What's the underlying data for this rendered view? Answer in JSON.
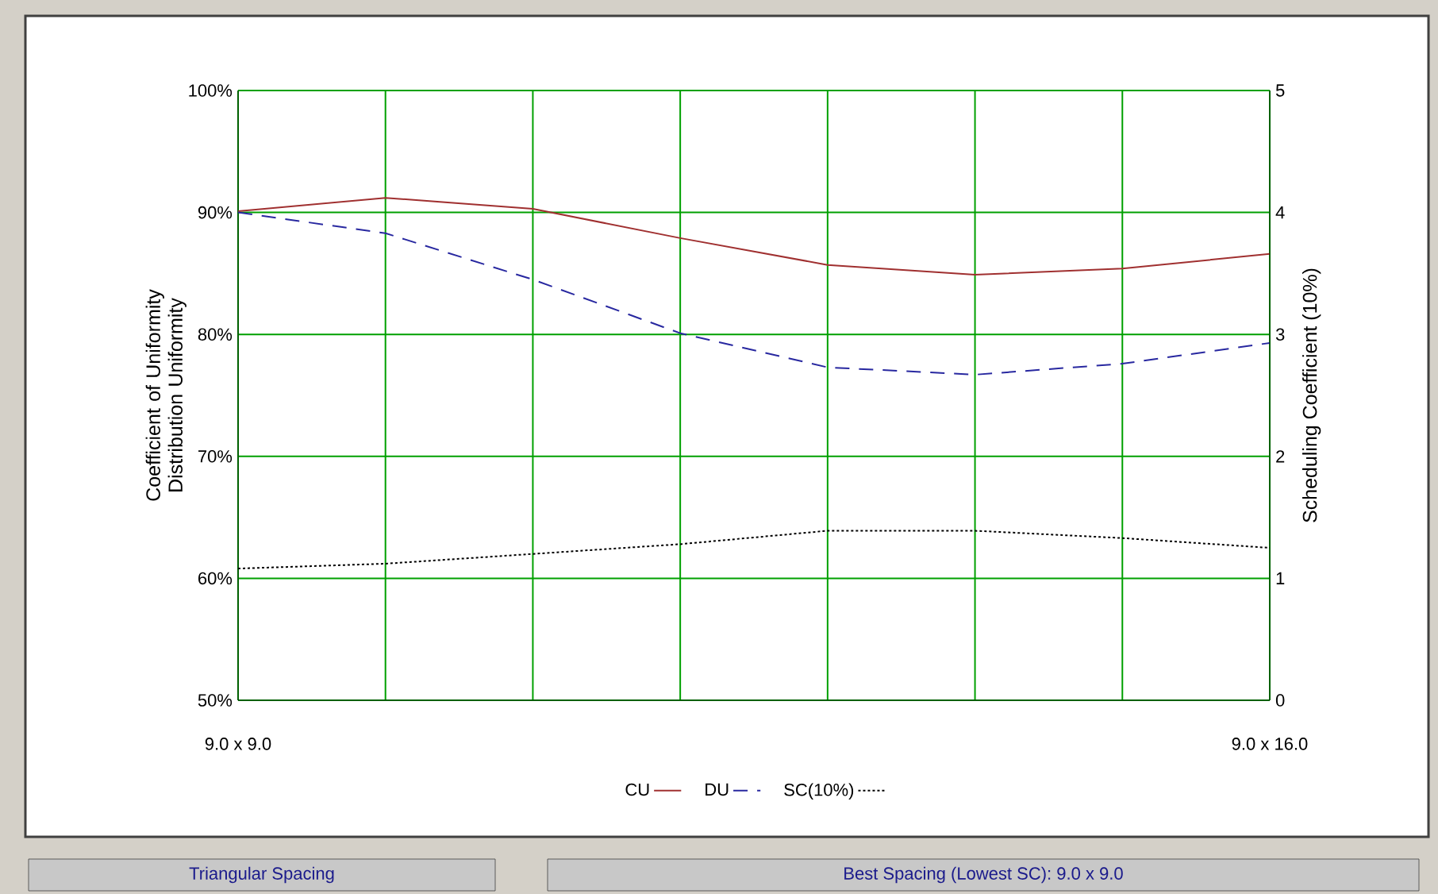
{
  "chart_data": {
    "type": "line",
    "ylabel": "Coefficient of Uniformity Distribution Uniformity",
    "y2label": "Scheduling Coefficient (10%)",
    "categories": [
      "9.0 x 9.0",
      null,
      null,
      null,
      null,
      null,
      null,
      "9.0 x 16.0"
    ],
    "series": [
      {
        "name": "CU",
        "color": "#a03030",
        "line_style": "solid",
        "values": [
          90.1,
          91.2,
          90.3,
          87.9,
          85.7,
          84.9,
          85.4,
          86.6
        ]
      },
      {
        "name": "DU",
        "color": "#2828a0",
        "line_style": "dashed",
        "values": [
          90.0,
          88.3,
          84.5,
          80.1,
          77.3,
          76.7,
          77.6,
          79.3
        ]
      },
      {
        "name": "SC(10%)",
        "color": "#000000",
        "line_style": "dotted",
        "axis": "y2",
        "values": [
          1.08,
          1.12,
          1.2,
          1.28,
          1.39,
          1.39,
          1.33,
          1.25
        ]
      }
    ],
    "ylim": [
      50,
      100
    ],
    "yticks": [
      {
        "value": 50,
        "label": "50%"
      },
      {
        "value": 60,
        "label": "60%"
      },
      {
        "value": 70,
        "label": "70%"
      },
      {
        "value": 80,
        "label": "80%"
      },
      {
        "value": 90,
        "label": "90%"
      },
      {
        "value": 100,
        "label": "100%"
      }
    ],
    "y2lim": [
      0,
      5
    ],
    "y2ticks": [
      0,
      1,
      2,
      3,
      4,
      5
    ],
    "grid": true,
    "legend": "bottom",
    "marker": "none",
    "annotations": [
      "Triangular Spacing",
      "Best Spacing (Lowest SC):   9.0 x 9.0"
    ]
  }
}
